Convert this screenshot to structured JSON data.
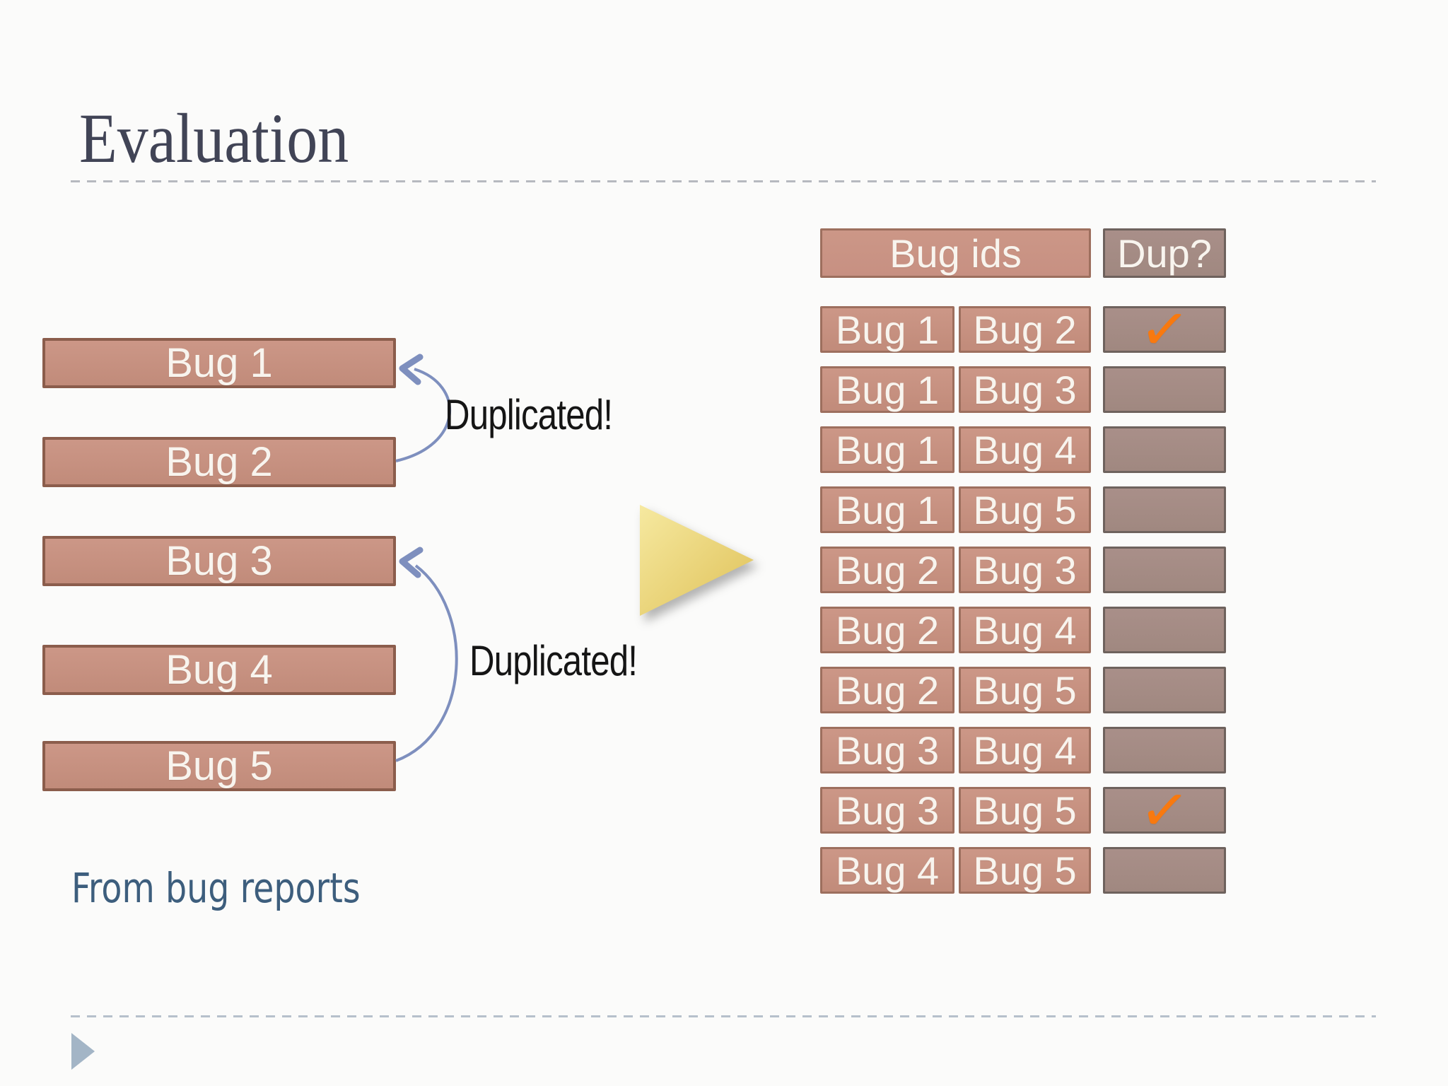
{
  "slide": {
    "title": "Evaluation",
    "footnote": "From bug reports"
  },
  "bug_list": {
    "items": [
      "Bug 1",
      "Bug 2",
      "Bug 3",
      "Bug 4",
      "Bug 5"
    ]
  },
  "duplicate_annotations": [
    {
      "label": "Duplicated!"
    },
    {
      "label": "Duplicated!"
    }
  ],
  "pair_table": {
    "id_header": "Bug ids",
    "dup_header": "Dup?",
    "check_glyph": "✓",
    "rows": [
      {
        "left": "Bug 1",
        "right": "Bug 2",
        "dup": true
      },
      {
        "left": "Bug 1",
        "right": "Bug 3",
        "dup": false
      },
      {
        "left": "Bug 1",
        "right": "Bug 4",
        "dup": false
      },
      {
        "left": "Bug 1",
        "right": "Bug 5",
        "dup": false
      },
      {
        "left": "Bug 2",
        "right": "Bug 3",
        "dup": false
      },
      {
        "left": "Bug 2",
        "right": "Bug 4",
        "dup": false
      },
      {
        "left": "Bug 2",
        "right": "Bug 5",
        "dup": false
      },
      {
        "left": "Bug 3",
        "right": "Bug 4",
        "dup": false
      },
      {
        "left": "Bug 3",
        "right": "Bug 5",
        "dup": true
      },
      {
        "left": "Bug 4",
        "right": "Bug 5",
        "dup": false
      }
    ]
  },
  "colors": {
    "title_color": "#414456",
    "salmon_fill": "#c18b7a",
    "salmon_fill_light": "#cc9787",
    "salmon_border": "#8b5d4c",
    "header_fill": "#c79082",
    "cell_border": "#9d6f5e",
    "dup_fill": "#a98f89",
    "dup_fill_dark": "#a08880",
    "dup_border": "#6e625d",
    "check_orange": "#f8790f",
    "arc_blue": "#7e8fbe",
    "arrow_yellow_light": "#f6e9a0",
    "arrow_yellow_dark": "#dfc158",
    "divider_gray": "#b6b9bf",
    "divider_blue": "#b6c0cb",
    "footnote_color": "#3d5e7d",
    "footer_arrow": "#a3b5c6",
    "bar_text": "#f8f4ee"
  }
}
